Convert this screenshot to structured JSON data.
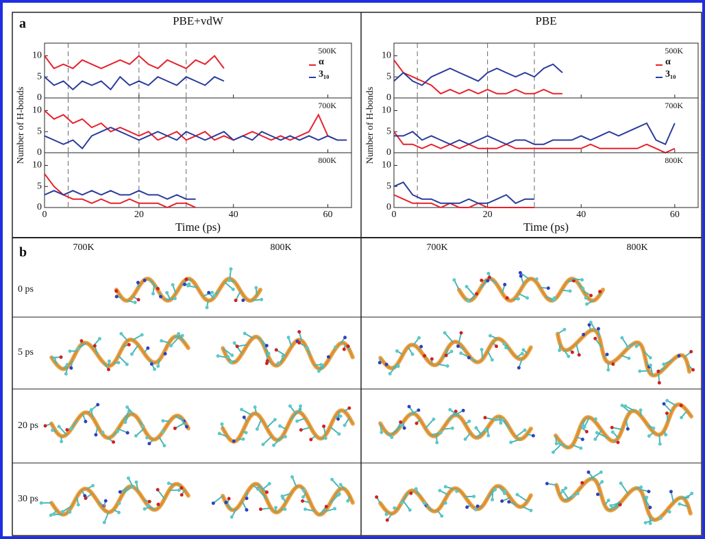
{
  "panel_labels": [
    "a",
    "b"
  ],
  "chart_data": [
    {
      "type": "line",
      "title": "PBE+vdW",
      "xlabel": "Time (ps)",
      "ylabel": "Number of H-bonds",
      "xlim": [
        0,
        65
      ],
      "xticks": [
        0,
        20,
        40,
        60
      ],
      "ylim": [
        0,
        13
      ],
      "yticks": [
        0,
        5,
        10
      ],
      "vlines": [
        5,
        20,
        30
      ],
      "legend": [
        {
          "name": "α",
          "color": "#e8202a"
        },
        {
          "name": "3₁₀",
          "color": "#2a3b9b"
        }
      ],
      "panels": [
        {
          "annotation": "500K",
          "x": [
            0,
            2,
            4,
            6,
            8,
            10,
            12,
            14,
            16,
            18,
            20,
            22,
            24,
            26,
            28,
            30,
            32,
            34,
            36,
            38
          ],
          "series": [
            {
              "values": [
                10,
                7,
                8,
                7,
                9,
                8,
                7,
                8,
                9,
                8,
                10,
                8,
                7,
                9,
                8,
                7,
                9,
                8,
                10,
                7
              ]
            },
            {
              "values": [
                5,
                3,
                4,
                2,
                4,
                3,
                4,
                2,
                5,
                3,
                4,
                3,
                5,
                4,
                3,
                5,
                4,
                3,
                5,
                4
              ]
            }
          ]
        },
        {
          "annotation": "700K",
          "x": [
            0,
            2,
            4,
            6,
            8,
            10,
            12,
            14,
            16,
            18,
            20,
            22,
            24,
            26,
            28,
            30,
            32,
            34,
            36,
            38,
            40,
            42,
            44,
            46,
            48,
            50,
            52,
            54,
            56,
            58,
            60,
            62,
            64
          ],
          "series": [
            {
              "values": [
                10,
                8,
                9,
                7,
                8,
                6,
                7,
                5,
                6,
                5,
                4,
                5,
                3,
                4,
                5,
                3,
                4,
                5,
                3,
                4,
                3,
                4,
                5,
                4,
                3,
                4,
                3,
                4,
                5,
                9,
                4,
                3,
                3
              ]
            },
            {
              "values": [
                4,
                3,
                2,
                3,
                1,
                4,
                5,
                6,
                5,
                4,
                3,
                4,
                5,
                4,
                3,
                5,
                4,
                3,
                4,
                5,
                3,
                4,
                3,
                5,
                4,
                3,
                4,
                3,
                4,
                3,
                4,
                3,
                3
              ]
            }
          ]
        },
        {
          "annotation": "800K",
          "x": [
            0,
            2,
            4,
            6,
            8,
            10,
            12,
            14,
            16,
            18,
            20,
            22,
            24,
            26,
            28,
            30,
            32
          ],
          "series": [
            {
              "values": [
                8,
                5,
                3,
                2,
                2,
                1,
                2,
                1,
                1,
                2,
                1,
                1,
                1,
                0,
                1,
                1,
                0
              ]
            },
            {
              "values": [
                3,
                4,
                3,
                4,
                3,
                4,
                3,
                4,
                3,
                3,
                4,
                3,
                3,
                2,
                3,
                2,
                2
              ]
            }
          ]
        }
      ]
    },
    {
      "type": "line",
      "title": "PBE",
      "xlabel": "Time (ps)",
      "ylabel": "Number of H-bonds",
      "xlim": [
        0,
        65
      ],
      "xticks": [
        0,
        20,
        40,
        60
      ],
      "ylim": [
        0,
        13
      ],
      "yticks": [
        0,
        5,
        10
      ],
      "vlines": [
        5,
        20,
        30
      ],
      "legend": [
        {
          "name": "α",
          "color": "#e8202a"
        },
        {
          "name": "3₁₀",
          "color": "#2a3b9b"
        }
      ],
      "panels": [
        {
          "annotation": "500K",
          "x": [
            0,
            2,
            4,
            6,
            8,
            10,
            12,
            14,
            16,
            18,
            20,
            22,
            24,
            26,
            28,
            30,
            32,
            34,
            36
          ],
          "series": [
            {
              "values": [
                9,
                6,
                5,
                4,
                3,
                1,
                2,
                1,
                2,
                1,
                2,
                1,
                1,
                2,
                1,
                1,
                2,
                1,
                1
              ]
            },
            {
              "values": [
                4,
                6,
                4,
                3,
                5,
                6,
                7,
                6,
                5,
                4,
                6,
                7,
                6,
                5,
                6,
                5,
                7,
                8,
                6
              ]
            }
          ]
        },
        {
          "annotation": "700K",
          "x": [
            0,
            2,
            4,
            6,
            8,
            10,
            12,
            14,
            16,
            18,
            20,
            22,
            24,
            26,
            28,
            30,
            32,
            34,
            36,
            38,
            40,
            42,
            44,
            46,
            48,
            50,
            52,
            54,
            56,
            58,
            60
          ],
          "series": [
            {
              "values": [
                5,
                2,
                2,
                1,
                2,
                1,
                2,
                1,
                2,
                1,
                1,
                1,
                2,
                1,
                1,
                1,
                1,
                1,
                1,
                1,
                1,
                2,
                1,
                1,
                1,
                1,
                1,
                2,
                1,
                0,
                1
              ]
            },
            {
              "values": [
                4,
                4,
                5,
                3,
                4,
                3,
                2,
                3,
                2,
                3,
                4,
                3,
                2,
                3,
                3,
                2,
                2,
                3,
                3,
                3,
                4,
                3,
                4,
                5,
                4,
                5,
                6,
                7,
                3,
                2,
                7
              ]
            }
          ]
        },
        {
          "annotation": "800K",
          "x": [
            0,
            2,
            4,
            6,
            8,
            10,
            12,
            14,
            16,
            18,
            20,
            22,
            24,
            26,
            28,
            30
          ],
          "series": [
            {
              "values": [
                3,
                2,
                1,
                1,
                1,
                0,
                1,
                0,
                0,
                1,
                0,
                0,
                0,
                0,
                0,
                0
              ]
            },
            {
              "values": [
                5,
                6,
                3,
                2,
                2,
                1,
                1,
                1,
                2,
                1,
                1,
                2,
                3,
                1,
                2,
                2
              ]
            }
          ]
        }
      ]
    }
  ],
  "panel_b": {
    "column_headers": [
      "700K",
      "800K",
      "700K",
      "800K"
    ],
    "row_labels": [
      "0 ps",
      "5 ps",
      "20 ps",
      "30 ps"
    ]
  }
}
